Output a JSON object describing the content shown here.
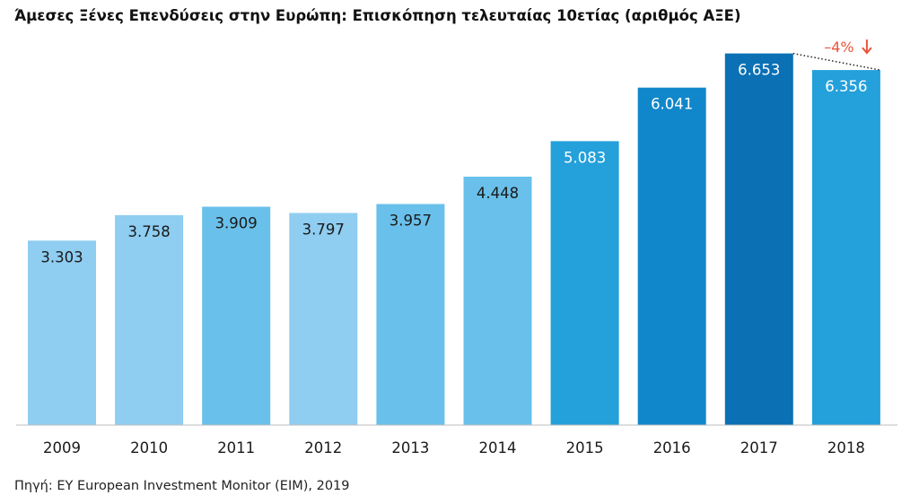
{
  "chart_data": {
    "type": "bar",
    "title": "Άμεσες Ξένες Επενδύσεις στην Ευρώπη: Επισκόπηση τελευταίας 10ετίας (αριθμός ΑΞΕ)",
    "categories": [
      "2009",
      "2010",
      "2011",
      "2012",
      "2013",
      "2014",
      "2015",
      "2016",
      "2017",
      "2018"
    ],
    "values": [
      3303,
      3758,
      3909,
      3797,
      3957,
      4448,
      5083,
      6041,
      6653,
      6356
    ],
    "value_labels": [
      "3.303",
      "3.758",
      "3.909",
      "3.797",
      "3.957",
      "4.448",
      "5.083",
      "6.041",
      "6.653",
      "6.356"
    ],
    "bar_colors": [
      "#8fcdf1",
      "#8fcdf1",
      "#69c0ea",
      "#8fcdf1",
      "#69c0ea",
      "#69c0ea",
      "#24a0db",
      "#1187cb",
      "#0b70b4",
      "#24a0db"
    ],
    "label_colors": [
      "#1a1a1a",
      "#1a1a1a",
      "#1a1a1a",
      "#1a1a1a",
      "#1a1a1a",
      "#1a1a1a",
      "#ffffff",
      "#ffffff",
      "#ffffff",
      "#ffffff"
    ],
    "ylim": [
      0,
      7000
    ],
    "xlabel": "",
    "ylabel": "",
    "grid": false,
    "annotation": {
      "text": "–4%",
      "from_category": "2017",
      "to_category": "2018",
      "color": "#e8543c",
      "arrow": "down"
    }
  },
  "source": "Πηγή: EY European Investment Monitor (EIM), 2019"
}
